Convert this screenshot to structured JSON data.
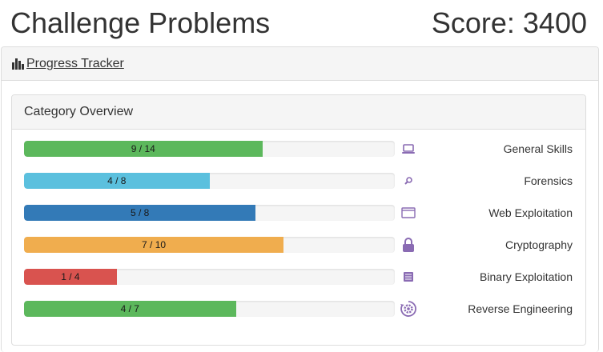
{
  "header": {
    "title": "Challenge Problems",
    "score": "Score: 3400"
  },
  "tracker": {
    "link_label": "Progress Tracker",
    "icon": "bar-chart-icon"
  },
  "overview": {
    "heading": "Category Overview",
    "colors": {
      "track": "#f5f5f5",
      "icon": "#8a6bb3"
    },
    "categories": [
      {
        "name": "General Skills",
        "solved": 9,
        "total": 14,
        "label": "9 / 14",
        "color": "#5cb85c",
        "icon": "laptop-icon"
      },
      {
        "name": "Forensics",
        "solved": 4,
        "total": 8,
        "label": "4 / 8",
        "color": "#5bc0de",
        "icon": "magnifier-icon"
      },
      {
        "name": "Web Exploitation",
        "solved": 5,
        "total": 8,
        "label": "5 / 8",
        "color": "#337ab7",
        "icon": "browser-window-icon"
      },
      {
        "name": "Cryptography",
        "solved": 7,
        "total": 10,
        "label": "7 / 10",
        "color": "#f0ad4e",
        "icon": "lock-icon"
      },
      {
        "name": "Binary Exploitation",
        "solved": 1,
        "total": 4,
        "label": "1 / 4",
        "color": "#d9534f",
        "icon": "binary-file-icon"
      },
      {
        "name": "Reverse Engineering",
        "solved": 4,
        "total": 7,
        "label": "4 / 7",
        "color": "#5cb85c",
        "icon": "gear-cycle-icon"
      }
    ]
  }
}
